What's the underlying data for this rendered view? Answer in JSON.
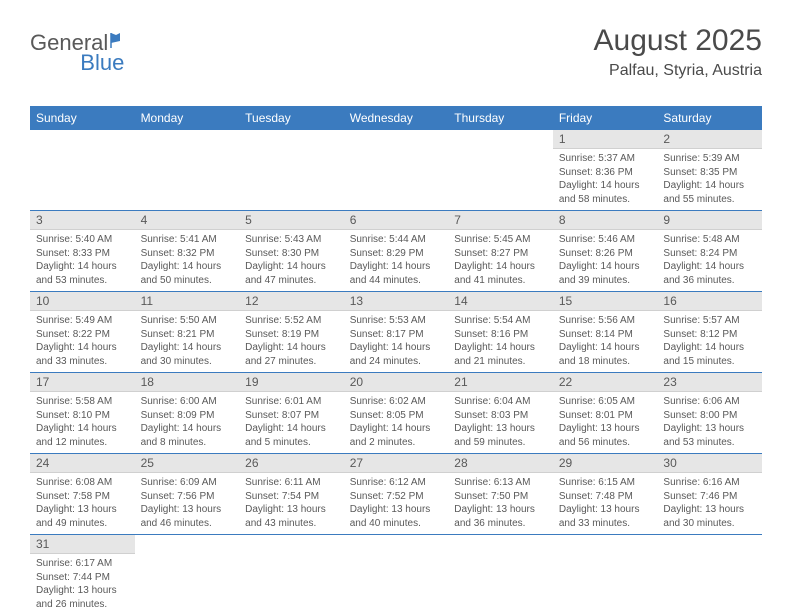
{
  "logo": {
    "part1": "General",
    "part2": "Blue"
  },
  "header": {
    "month": "August 2025",
    "location": "Palfau, Styria, Austria"
  },
  "colors": {
    "header_bg": "#3b7bbf",
    "daynum_bg": "#e6e6e6",
    "text": "#595959",
    "row_border": "#3b7bbf"
  },
  "day_names": [
    "Sunday",
    "Monday",
    "Tuesday",
    "Wednesday",
    "Thursday",
    "Friday",
    "Saturday"
  ],
  "leading_blanks": 5,
  "days": [
    {
      "n": 1,
      "sunrise": "5:37 AM",
      "sunset": "8:36 PM",
      "daylight": "14 hours and 58 minutes."
    },
    {
      "n": 2,
      "sunrise": "5:39 AM",
      "sunset": "8:35 PM",
      "daylight": "14 hours and 55 minutes."
    },
    {
      "n": 3,
      "sunrise": "5:40 AM",
      "sunset": "8:33 PM",
      "daylight": "14 hours and 53 minutes."
    },
    {
      "n": 4,
      "sunrise": "5:41 AM",
      "sunset": "8:32 PM",
      "daylight": "14 hours and 50 minutes."
    },
    {
      "n": 5,
      "sunrise": "5:43 AM",
      "sunset": "8:30 PM",
      "daylight": "14 hours and 47 minutes."
    },
    {
      "n": 6,
      "sunrise": "5:44 AM",
      "sunset": "8:29 PM",
      "daylight": "14 hours and 44 minutes."
    },
    {
      "n": 7,
      "sunrise": "5:45 AM",
      "sunset": "8:27 PM",
      "daylight": "14 hours and 41 minutes."
    },
    {
      "n": 8,
      "sunrise": "5:46 AM",
      "sunset": "8:26 PM",
      "daylight": "14 hours and 39 minutes."
    },
    {
      "n": 9,
      "sunrise": "5:48 AM",
      "sunset": "8:24 PM",
      "daylight": "14 hours and 36 minutes."
    },
    {
      "n": 10,
      "sunrise": "5:49 AM",
      "sunset": "8:22 PM",
      "daylight": "14 hours and 33 minutes."
    },
    {
      "n": 11,
      "sunrise": "5:50 AM",
      "sunset": "8:21 PM",
      "daylight": "14 hours and 30 minutes."
    },
    {
      "n": 12,
      "sunrise": "5:52 AM",
      "sunset": "8:19 PM",
      "daylight": "14 hours and 27 minutes."
    },
    {
      "n": 13,
      "sunrise": "5:53 AM",
      "sunset": "8:17 PM",
      "daylight": "14 hours and 24 minutes."
    },
    {
      "n": 14,
      "sunrise": "5:54 AM",
      "sunset": "8:16 PM",
      "daylight": "14 hours and 21 minutes."
    },
    {
      "n": 15,
      "sunrise": "5:56 AM",
      "sunset": "8:14 PM",
      "daylight": "14 hours and 18 minutes."
    },
    {
      "n": 16,
      "sunrise": "5:57 AM",
      "sunset": "8:12 PM",
      "daylight": "14 hours and 15 minutes."
    },
    {
      "n": 17,
      "sunrise": "5:58 AM",
      "sunset": "8:10 PM",
      "daylight": "14 hours and 12 minutes."
    },
    {
      "n": 18,
      "sunrise": "6:00 AM",
      "sunset": "8:09 PM",
      "daylight": "14 hours and 8 minutes."
    },
    {
      "n": 19,
      "sunrise": "6:01 AM",
      "sunset": "8:07 PM",
      "daylight": "14 hours and 5 minutes."
    },
    {
      "n": 20,
      "sunrise": "6:02 AM",
      "sunset": "8:05 PM",
      "daylight": "14 hours and 2 minutes."
    },
    {
      "n": 21,
      "sunrise": "6:04 AM",
      "sunset": "8:03 PM",
      "daylight": "13 hours and 59 minutes."
    },
    {
      "n": 22,
      "sunrise": "6:05 AM",
      "sunset": "8:01 PM",
      "daylight": "13 hours and 56 minutes."
    },
    {
      "n": 23,
      "sunrise": "6:06 AM",
      "sunset": "8:00 PM",
      "daylight": "13 hours and 53 minutes."
    },
    {
      "n": 24,
      "sunrise": "6:08 AM",
      "sunset": "7:58 PM",
      "daylight": "13 hours and 49 minutes."
    },
    {
      "n": 25,
      "sunrise": "6:09 AM",
      "sunset": "7:56 PM",
      "daylight": "13 hours and 46 minutes."
    },
    {
      "n": 26,
      "sunrise": "6:11 AM",
      "sunset": "7:54 PM",
      "daylight": "13 hours and 43 minutes."
    },
    {
      "n": 27,
      "sunrise": "6:12 AM",
      "sunset": "7:52 PM",
      "daylight": "13 hours and 40 minutes."
    },
    {
      "n": 28,
      "sunrise": "6:13 AM",
      "sunset": "7:50 PM",
      "daylight": "13 hours and 36 minutes."
    },
    {
      "n": 29,
      "sunrise": "6:15 AM",
      "sunset": "7:48 PM",
      "daylight": "13 hours and 33 minutes."
    },
    {
      "n": 30,
      "sunrise": "6:16 AM",
      "sunset": "7:46 PM",
      "daylight": "13 hours and 30 minutes."
    },
    {
      "n": 31,
      "sunrise": "6:17 AM",
      "sunset": "7:44 PM",
      "daylight": "13 hours and 26 minutes."
    }
  ],
  "labels": {
    "sunrise": "Sunrise: ",
    "sunset": "Sunset: ",
    "daylight": "Daylight: "
  }
}
